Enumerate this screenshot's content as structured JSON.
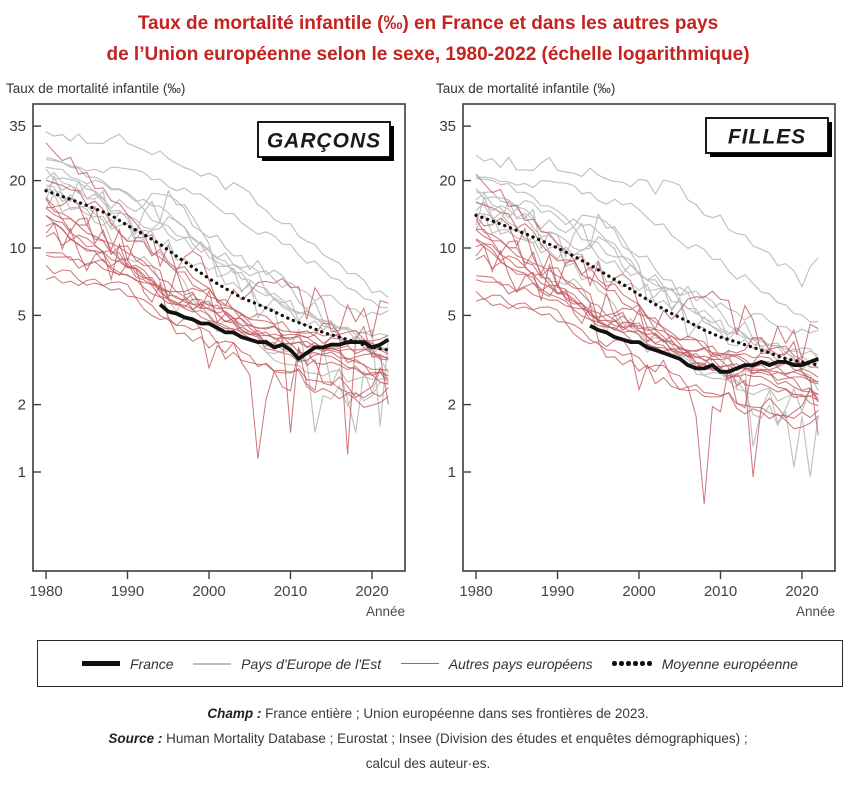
{
  "title": {
    "line1": "Taux de mortalité infantile (‰) en France et dans les autres pays",
    "line2": "de l’Union européenne selon le sexe, 1980-2022 (échelle logarithmique)"
  },
  "colors": {
    "title": "#c42320",
    "france": "#111111",
    "east": "#bdbdbd",
    "west": "#c2575b",
    "average": "#111111"
  },
  "chart_data": [
    {
      "type": "line",
      "title": "GARÇONS",
      "ylabel": "Taux de mortalité infantile (‰)",
      "xlabel": "Année",
      "log_scale": true,
      "x_range": [
        1980,
        2022
      ],
      "x_ticks": [
        1980,
        1990,
        2000,
        2010,
        2020
      ],
      "y_ticks": [
        35,
        20,
        10,
        5,
        2,
        1
      ],
      "anchor_years": [
        1980,
        1985,
        1990,
        1995,
        2000,
        2005,
        2010,
        2015,
        2020,
        2022
      ],
      "background": {
        "east": [
          {
            "values": [
              34,
              30,
              31,
              25,
              21,
              17,
              12.5,
              9,
              6.5,
              6
            ],
            "jitter": 0.025
          },
          {
            "values": [
              26,
              23,
              22,
              19.5,
              16,
              12.5,
              10,
              7.5,
              5.8,
              5.5
            ],
            "jitter": 0.02
          },
          {
            "values": [
              26,
              21,
              17,
              12,
              10,
              7,
              5.5,
              4.6,
              3.7,
              3.5
            ],
            "jitter": 0.02
          },
          {
            "values": [
              24,
              20,
              17.5,
              14.5,
              9,
              7,
              5.5,
              4.5,
              4,
              4.2
            ],
            "jitter": 0.02
          },
          {
            "values": [
              20,
              17,
              15.5,
              17,
              11,
              8.5,
              6.5,
              4.5,
              3.5,
              3.3
            ],
            "jitter": 0.045
          },
          {
            "values": [
              18,
              15,
              11.5,
              13.5,
              9,
              7.5,
              5.5,
              4.2,
              3.3,
              3
            ],
            "jitter": 0.05
          },
          {
            "values": [
              19,
              16,
              13.5,
              15.5,
              9.5,
              6,
              4,
              2.8,
              2.2,
              2.6
            ],
            "jitter": 0.09,
            "spikes": {
              "2018": 1.5
            }
          },
          {
            "values": [
              18,
              14,
              12,
              8.5,
              4.8,
              3.8,
              3,
              2.8,
              2.5,
              2.6
            ],
            "jitter": 0.035
          },
          {
            "values": [
              22,
              18,
              13.5,
              12,
              9.5,
              8,
              6.8,
              5.8,
              5,
              5.5
            ],
            "jitter": 0.03
          },
          {
            "values": [
              16,
              14,
              9.5,
              6.2,
              5.2,
              4,
              3,
              2.3,
              2.1,
              2.2
            ],
            "jitter": 0.07,
            "spikes": {
              "2013": 1.5
            }
          },
          {
            "values": [
              21,
              18,
              12.5,
              10,
              8,
              6.5,
              5,
              4.5,
              4,
              4.3
            ],
            "jitter": 0.04,
            "spikes": {
              "2021": 1.6
            }
          }
        ],
        "west": [
          {
            "values": [
              29,
              21,
              13.5,
              8.5,
              6,
              4,
              3.2,
              3.3,
              2.8,
              2.6
            ],
            "jitter": 0.03
          },
          {
            "values": [
              20,
              16.5,
              11,
              9,
              6.5,
              4.8,
              4,
              4.4,
              3.8,
              3.6
            ],
            "jitter": 0.03
          },
          {
            "values": [
              16,
              12,
              9.5,
              7,
              5.2,
              4,
              3.6,
              3.2,
              2.7,
              2.5
            ],
            "jitter": 0.02
          },
          {
            "values": [
              14,
              10.5,
              8.5,
              6,
              4.9,
              4.1,
              3.5,
              3,
              2.8,
              2.7
            ],
            "jitter": 0.02
          },
          {
            "values": [
              13,
              10.5,
              8.5,
              6.5,
              5.5,
              4.2,
              3.8,
              3.5,
              3.6,
              3.3
            ],
            "jitter": 0.025
          },
          {
            "values": [
              15,
              12,
              8.5,
              6,
              5.2,
              4.6,
              4.2,
              3.4,
              3.3,
              3.2
            ],
            "jitter": 0.025
          },
          {
            "values": [
              13.5,
              10,
              7.5,
              5.8,
              4.8,
              4.2,
              3.8,
              3.6,
              3.4,
              3.3
            ],
            "jitter": 0.015
          },
          {
            "values": [
              9.5,
              8.5,
              7.8,
              6.2,
              5.5,
              5,
              4.4,
              3.8,
              4,
              3.9
            ],
            "jitter": 0.02
          },
          {
            "values": [
              9,
              8.5,
              8,
              5.6,
              5.8,
              4.8,
              4,
              4,
              3.5,
              3.2
            ],
            "jitter": 0.03
          },
          {
            "values": [
              8.5,
              7,
              6.5,
              4.6,
              4.2,
              3.2,
              2.8,
              2.2,
              2,
              2.2
            ],
            "jitter": 0.03
          },
          {
            "values": [
              7.5,
              7,
              6.5,
              4.6,
              3.8,
              2.9,
              2.8,
              2.6,
              2.2,
              2.4
            ],
            "jitter": 0.03
          },
          {
            "values": [
              12,
              9.5,
              8.5,
              6.5,
              6.5,
              4.5,
              4,
              3.5,
              3,
              2.8
            ],
            "jitter": 0.03
          },
          {
            "values": [
              12,
              10,
              8,
              5.5,
              3.5,
              2.8,
              2.6,
              3.4,
              4.2,
              2.2
            ],
            "jitter": 0.12,
            "spikes": {
              "2006": 1.15,
              "2017": 1.2
            }
          },
          {
            "values": [
              17,
              13,
              10.5,
              9,
              7.2,
              6,
              6.2,
              5,
              4.5,
              6.5
            ],
            "jitter": 0.09
          },
          {
            "values": [
              15,
              12,
              10,
              7,
              5.8,
              4,
              3.4,
              2.5,
              2.2,
              3
            ],
            "jitter": 0.07,
            "spikes": {
              "2010": 1.5
            }
          }
        ]
      },
      "average": {
        "start_year": 1980,
        "year_step": 2,
        "values": [
          18,
          17,
          16,
          15,
          14,
          12.6,
          11.5,
          10.4,
          9.2,
          8.2,
          7.3,
          6.6,
          6.0,
          5.6,
          5.2,
          4.8,
          4.5,
          4.2,
          4.0,
          3.8,
          3.6,
          3.5
        ]
      },
      "france": {
        "start_year": 1994,
        "values": [
          5.6,
          5.2,
          5.1,
          4.9,
          4.8,
          4.6,
          4.6,
          4.4,
          4.2,
          4.2,
          4.0,
          3.9,
          3.8,
          3.8,
          3.6,
          3.7,
          3.5,
          3.2,
          3.4,
          3.6,
          3.6,
          3.7,
          3.7,
          3.8,
          3.8,
          3.8,
          3.6,
          3.7,
          3.9
        ]
      }
    },
    {
      "type": "line",
      "title": "FILLES",
      "ylabel": "Taux de mortalité infantile (‰)",
      "xlabel": "Année",
      "log_scale": true,
      "x_range": [
        1980,
        2022
      ],
      "x_ticks": [
        1980,
        1990,
        2000,
        2010,
        2020
      ],
      "y_ticks": [
        35,
        20,
        10,
        5,
        2,
        1
      ],
      "anchor_years": [
        1980,
        1985,
        1990,
        1995,
        2000,
        2005,
        2010,
        2015,
        2020,
        2022
      ],
      "background": {
        "east": [
          {
            "values": [
              27,
              23,
              24,
              21,
              19.5,
              18,
              13.5,
              10,
              7,
              9
            ],
            "jitter": 0.035
          },
          {
            "values": [
              22,
              20,
              19,
              17,
              14.5,
              11,
              8.5,
              6.5,
              5,
              4.8
            ],
            "jitter": 0.025
          },
          {
            "values": [
              21,
              18,
              14,
              10,
              8,
              6,
              4.5,
              3.8,
              3.2,
              3
            ],
            "jitter": 0.025
          },
          {
            "values": [
              19,
              16,
              14,
              12,
              7.5,
              5.5,
              4.5,
              3.8,
              3.3,
              3.5
            ],
            "jitter": 0.03
          },
          {
            "values": [
              16,
              14,
              12.5,
              13.5,
              9,
              6.5,
              5,
              3.8,
              3,
              2.8
            ],
            "jitter": 0.045
          },
          {
            "values": [
              15,
              12.5,
              9.5,
              11,
              7,
              6,
              4.5,
              3.5,
              2.8,
              2.5
            ],
            "jitter": 0.05
          },
          {
            "values": [
              15,
              13,
              11,
              12,
              7.5,
              5,
              3.2,
              2.2,
              1.8,
              2.1
            ],
            "jitter": 0.1,
            "spikes": {
              "2014": 1.3
            }
          },
          {
            "values": [
              14,
              11,
              9.5,
              6.5,
              3.9,
              3.2,
              2.6,
              2.3,
              2.1,
              2.2
            ],
            "jitter": 0.04
          },
          {
            "values": [
              18,
              15,
              11,
              9.5,
              7.5,
              6.5,
              5.5,
              4.8,
              4.2,
              4.5
            ],
            "jitter": 0.03
          },
          {
            "values": [
              13,
              11,
              7.5,
              5,
              4.5,
              3.2,
              2.4,
              1.9,
              1.7,
              1.6
            ],
            "jitter": 0.07,
            "spikes": {
              "2019": 1.05,
              "2021": 0.95
            }
          },
          {
            "values": [
              17,
              14,
              9.5,
              8,
              6.5,
              5.5,
              4,
              3.8,
              3.3,
              3.5
            ],
            "jitter": 0.045
          }
        ],
        "west": [
          {
            "values": [
              21,
              15,
              10,
              7,
              5,
              3.5,
              2.7,
              2.9,
              2.4,
              2.2
            ],
            "jitter": 0.03
          },
          {
            "values": [
              16,
              13,
              9,
              7.5,
              5.5,
              3.9,
              3.4,
              3.8,
              3.2,
              3
            ],
            "jitter": 0.03
          },
          {
            "values": [
              13,
              9.5,
              7.5,
              5.5,
              4.1,
              3.2,
              2.8,
              2.6,
              2.2,
              2
            ],
            "jitter": 0.02
          },
          {
            "values": [
              11,
              8.5,
              6.5,
              4.8,
              4,
              3.4,
              2.8,
              2.4,
              2.2,
              2.1
            ],
            "jitter": 0.02
          },
          {
            "values": [
              10.5,
              8.5,
              6.5,
              5.2,
              4.4,
              3.4,
              3,
              2.8,
              2.9,
              2.6
            ],
            "jitter": 0.025
          },
          {
            "values": [
              12,
              9.5,
              6.5,
              4.8,
              4.2,
              3.6,
              3.4,
              2.8,
              2.6,
              2.5
            ],
            "jitter": 0.025
          },
          {
            "values": [
              10.5,
              8,
              6,
              4.6,
              3.8,
              3.4,
              3,
              2.8,
              2.7,
              2.6
            ],
            "jitter": 0.015
          },
          {
            "values": [
              7.5,
              6.5,
              6,
              4.8,
              4.4,
              4,
              3.4,
              3,
              3.2,
              3.1
            ],
            "jitter": 0.02
          },
          {
            "values": [
              7,
              6.5,
              6.5,
              4.4,
              4.6,
              3.8,
              3.2,
              3.2,
              2.8,
              2.5
            ],
            "jitter": 0.03
          },
          {
            "values": [
              6.5,
              5.5,
              5,
              3.6,
              3.2,
              2.6,
              2.2,
              1.8,
              1.6,
              1.8
            ],
            "jitter": 0.03
          },
          {
            "values": [
              6,
              5.5,
              5,
              3.6,
              3,
              2.2,
              2.2,
              2,
              1.8,
              1.9
            ],
            "jitter": 0.03
          },
          {
            "values": [
              9.5,
              7.5,
              6.5,
              5,
              5.5,
              3.6,
              3.2,
              2.8,
              2.4,
              2.2
            ],
            "jitter": 0.03
          },
          {
            "values": [
              9.5,
              8,
              6.5,
              4.4,
              2.8,
              2.4,
              2.1,
              2.9,
              3.6,
              1.6
            ],
            "jitter": 0.12,
            "spikes": {
              "2008": 0.72
            }
          },
          {
            "values": [
              14,
              10.5,
              8,
              7.5,
              5.5,
              5,
              5.5,
              4,
              3.6,
              5
            ],
            "jitter": 0.09
          },
          {
            "values": [
              12,
              9.5,
              8,
              5.5,
              4.8,
              3.2,
              2.8,
              2,
              1.8,
              2.4
            ],
            "jitter": 0.07,
            "spikes": {
              "2014": 0.95
            }
          }
        ]
      },
      "average": {
        "start_year": 1980,
        "year_step": 2,
        "values": [
          14,
          13.2,
          12.4,
          11.6,
          10.8,
          10,
          9.2,
          8.4,
          7.6,
          6.9,
          6.2,
          5.6,
          5.1,
          4.7,
          4.3,
          4.0,
          3.8,
          3.6,
          3.4,
          3.2,
          3.1,
          3.0
        ]
      },
      "france": {
        "start_year": 1994,
        "values": [
          4.5,
          4.3,
          4.2,
          4.0,
          3.9,
          3.8,
          3.8,
          3.6,
          3.5,
          3.4,
          3.3,
          3.2,
          3.0,
          2.9,
          2.9,
          3.0,
          2.8,
          2.8,
          2.9,
          3.0,
          3.0,
          3.1,
          3.0,
          3.1,
          3.1,
          3.0,
          3.0,
          3.1,
          3.2
        ]
      }
    }
  ],
  "legend": {
    "items": [
      {
        "label": "France",
        "style": "thick-black"
      },
      {
        "label": "Pays d'Europe de l'Est",
        "style": "thin-gray"
      },
      {
        "label": "Autres pays européens",
        "style": "thin-red"
      },
      {
        "label": "Moyenne européenne",
        "style": "dotted-black"
      }
    ]
  },
  "footer": {
    "champ_label": "Champ :",
    "champ_text": "France entière ; Union européenne dans ses frontières de 2023.",
    "source_label": "Source :",
    "source_line1": "Human Mortality Database ; Eurostat ; Insee (Division des études et enquêtes démographiques) ;",
    "source_line2": "calcul des auteur·es."
  }
}
